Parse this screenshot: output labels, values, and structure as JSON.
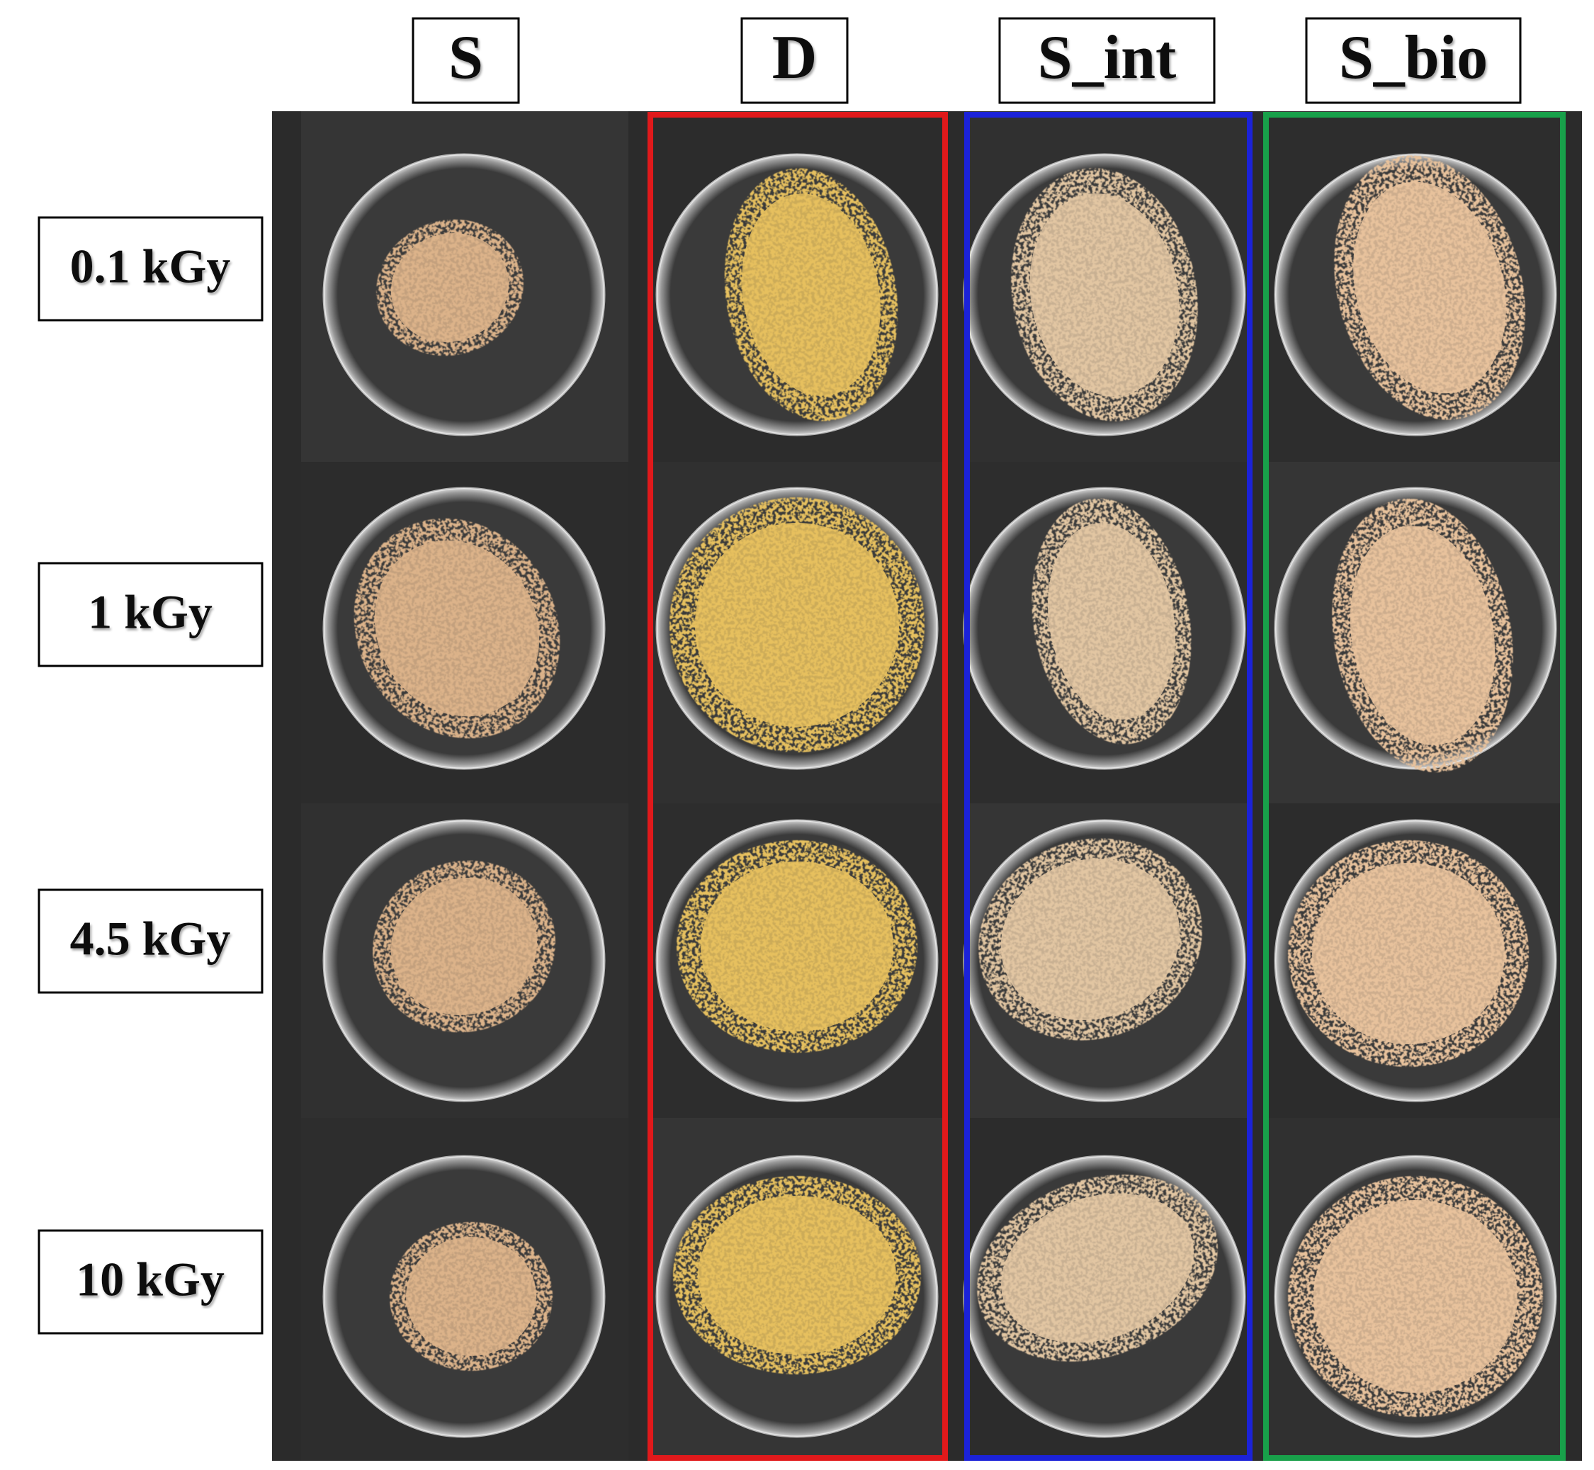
{
  "columns": [
    "S",
    "D",
    "S_int",
    "S_bio"
  ],
  "rows": [
    "0.1 kGy",
    "1 kGy",
    "4.5 kGy",
    "10 kGy"
  ]
}
